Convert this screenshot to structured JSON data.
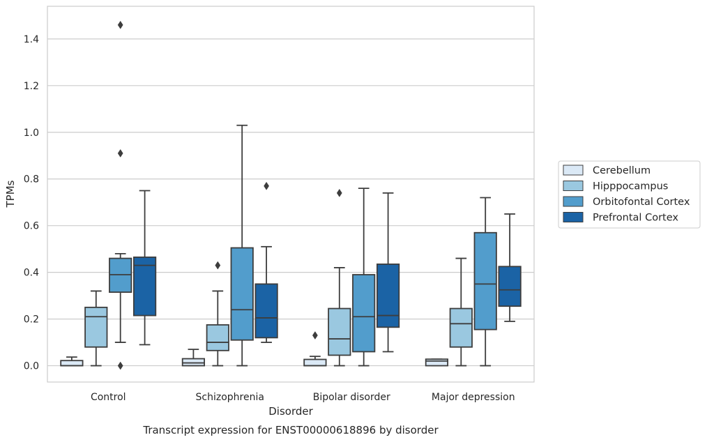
{
  "chart_data": {
    "type": "box",
    "title": "Transcript expression for ENST00000618896 by disorder",
    "xlabel": "Disorder",
    "ylabel": "TPMs",
    "ylim": [
      -0.07,
      1.54
    ],
    "yticks": [
      "0.0",
      "0.2",
      "0.4",
      "0.6",
      "0.8",
      "1.0",
      "1.2",
      "1.4"
    ],
    "ytick_values": [
      0,
      0.2,
      0.4,
      0.6,
      0.8,
      1.0,
      1.2,
      1.4
    ],
    "grid": "horizontal",
    "legend_position": "right",
    "categories": [
      "Control",
      "Schizophrenia",
      "Bipolar disorder",
      "Major depression"
    ],
    "series": [
      {
        "name": "Cerebellum",
        "color": "#dbe9f6",
        "boxes": [
          {
            "whislo": 0.0,
            "q1": 0.0,
            "med": 0.0,
            "q3": 0.022,
            "whishi": 0.037,
            "fliers": []
          },
          {
            "whislo": 0.0,
            "q1": 0.0,
            "med": 0.012,
            "q3": 0.03,
            "whishi": 0.07,
            "fliers": []
          },
          {
            "whislo": 0.0,
            "q1": 0.0,
            "med": 0.0,
            "q3": 0.027,
            "whishi": 0.04,
            "fliers": [
              0.13
            ]
          },
          {
            "whislo": 0.0,
            "q1": 0.0,
            "med": 0.02,
            "q3": 0.028,
            "whishi": 0.028,
            "fliers": []
          }
        ]
      },
      {
        "name": "Hipppocampus",
        "color": "#9ac8e0",
        "boxes": [
          {
            "whislo": 0.0,
            "q1": 0.08,
            "med": 0.21,
            "q3": 0.25,
            "whishi": 0.32,
            "fliers": []
          },
          {
            "whislo": 0.0,
            "q1": 0.065,
            "med": 0.1,
            "q3": 0.175,
            "whishi": 0.32,
            "fliers": [
              0.43
            ]
          },
          {
            "whislo": 0.0,
            "q1": 0.045,
            "med": 0.115,
            "q3": 0.245,
            "whishi": 0.42,
            "fliers": [
              0.74
            ]
          },
          {
            "whislo": 0.0,
            "q1": 0.08,
            "med": 0.18,
            "q3": 0.245,
            "whishi": 0.46,
            "fliers": []
          }
        ]
      },
      {
        "name": "Orbitofontal Cortex",
        "color": "#529dcc",
        "boxes": [
          {
            "whislo": 0.1,
            "q1": 0.315,
            "med": 0.39,
            "q3": 0.46,
            "whishi": 0.48,
            "fliers": [
              1.46,
              0.91,
              0.0
            ]
          },
          {
            "whislo": 0.0,
            "q1": 0.11,
            "med": 0.24,
            "q3": 0.505,
            "whishi": 1.03,
            "fliers": []
          },
          {
            "whislo": 0.0,
            "q1": 0.06,
            "med": 0.21,
            "q3": 0.39,
            "whishi": 0.76,
            "fliers": []
          },
          {
            "whislo": 0.0,
            "q1": 0.155,
            "med": 0.35,
            "q3": 0.57,
            "whishi": 0.72,
            "fliers": []
          }
        ]
      },
      {
        "name": "Prefrontal Cortex",
        "color": "#1b63a5",
        "boxes": [
          {
            "whislo": 0.09,
            "q1": 0.215,
            "med": 0.43,
            "q3": 0.465,
            "whishi": 0.75,
            "fliers": []
          },
          {
            "whislo": 0.1,
            "q1": 0.12,
            "med": 0.205,
            "q3": 0.35,
            "whishi": 0.51,
            "fliers": [
              0.77
            ]
          },
          {
            "whislo": 0.06,
            "q1": 0.165,
            "med": 0.215,
            "q3": 0.435,
            "whishi": 0.74,
            "fliers": []
          },
          {
            "whislo": 0.19,
            "q1": 0.255,
            "med": 0.325,
            "q3": 0.425,
            "whishi": 0.65,
            "fliers": []
          }
        ]
      }
    ]
  }
}
